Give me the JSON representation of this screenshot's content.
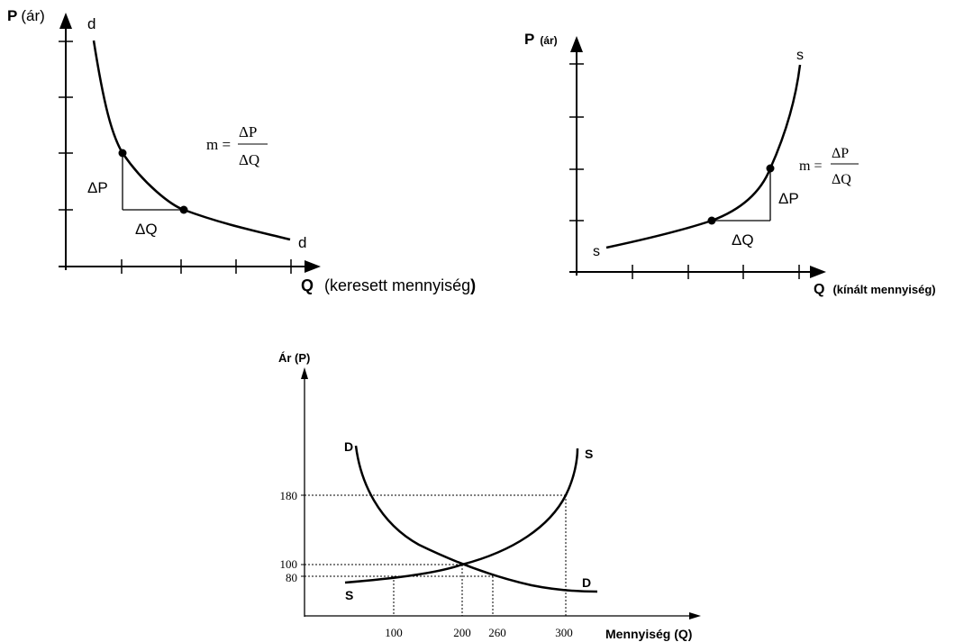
{
  "chart_data": [
    {
      "type": "line",
      "curve": "demand",
      "y_axis_label": {
        "bold": "P",
        "rest": "(ár)"
      },
      "x_axis_label": {
        "bold": "Q",
        "rest": "(keresett mennyiség",
        "close": ")"
      },
      "curve_label_start": "d",
      "curve_label_end": "d",
      "delta_p": "ΔP",
      "delta_q": "ΔQ",
      "slope_formula": {
        "lhs": "m =",
        "num": "ΔP",
        "den": "ΔQ"
      }
    },
    {
      "type": "line",
      "curve": "supply",
      "y_axis_label": {
        "bold": "P",
        "rest": "(ár)"
      },
      "x_axis_label": {
        "bold": "Q",
        "rest": "(kínált mennyiség)"
      },
      "curve_label_start": "s",
      "curve_label_end": "s",
      "delta_p": "ΔP",
      "delta_q": "ΔQ",
      "slope_formula": {
        "lhs": "m =",
        "num": "ΔP",
        "den": "ΔQ"
      }
    },
    {
      "type": "line",
      "ylabel": "Ár (P)",
      "xlabel": "Mennyiség (Q)",
      "x_ticks": [
        "100",
        "200",
        "260",
        "300"
      ],
      "y_ticks": [
        "180",
        "100",
        "80"
      ],
      "series": [
        {
          "name": "D",
          "label_start": "D",
          "label_end": "D",
          "points": [
            [
              200,
              100
            ],
            [
              260,
              80
            ]
          ]
        },
        {
          "name": "S",
          "label_start": "S",
          "label_end": "S",
          "points": [
            [
              100,
              80
            ],
            [
              200,
              100
            ],
            [
              300,
              180
            ]
          ]
        }
      ],
      "equilibrium": {
        "q": 200,
        "p": 100
      }
    }
  ]
}
